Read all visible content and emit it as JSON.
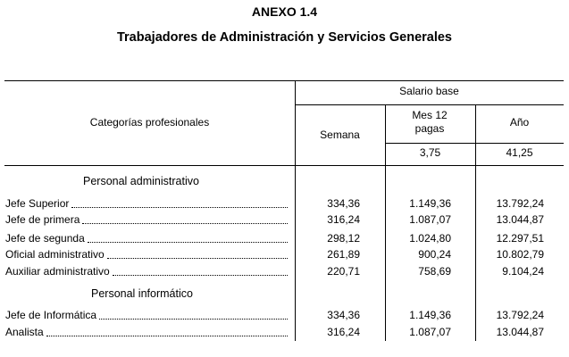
{
  "header": {
    "title": "ANEXO 1.4",
    "subtitle": "Trabajadores de Administración y Servicios Generales"
  },
  "table": {
    "stub_header": "Categorías profesionales",
    "group_header": "Salario base",
    "columns": [
      "Semana",
      "Mes 12 pagas",
      "Año"
    ],
    "sub_values": [
      "3,75",
      "41,25"
    ],
    "sections": [
      {
        "title": "Personal administrativo",
        "rows": [
          {
            "label": "Jefe Superior",
            "values": [
              "334,36",
              "1.149,36",
              "13.792,24"
            ]
          },
          {
            "label": "Jefe de primera",
            "values": [
              "316,24",
              "1.087,07",
              "13.044,87"
            ]
          },
          {
            "label": "Jefe de segunda",
            "values": [
              "298,12",
              "1.024,80",
              "12.297,51"
            ]
          },
          {
            "label": "Oficial administrativo",
            "values": [
              "261,89",
              "900,24",
              "10.802,79"
            ]
          },
          {
            "label": "Auxiliar administrativo",
            "values": [
              "220,71",
              "758,69",
              "9.104,24"
            ]
          }
        ]
      },
      {
        "title": "Personal informático",
        "rows": [
          {
            "label": "Jefe de Informática",
            "values": [
              "334,36",
              "1.149,36",
              "13.792,24"
            ]
          },
          {
            "label": "Analista",
            "values": [
              "316,24",
              "1.087,07",
              "13.044,87"
            ]
          }
        ]
      }
    ]
  }
}
